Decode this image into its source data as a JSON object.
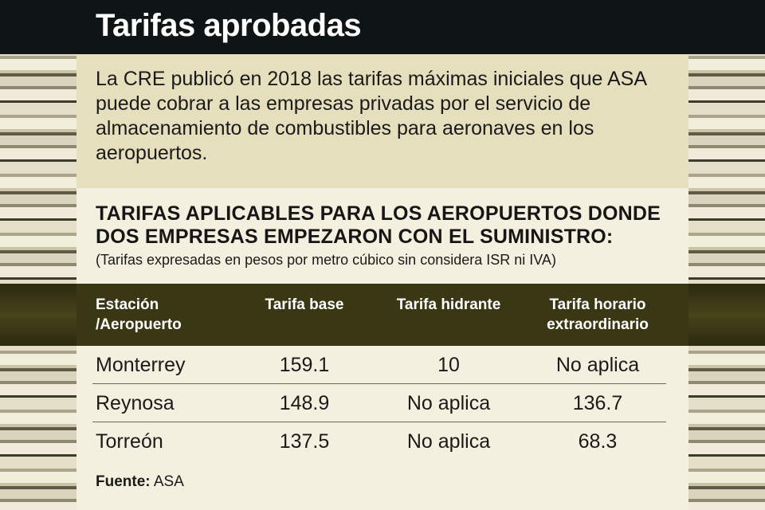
{
  "title": "Tarifas aprobadas",
  "intro": "La CRE publicó en 2018 las tarifas máximas iniciales que ASA puede cobrar a las empresas privadas por el servicio de almacenamiento de combustibles para aeronaves en los aeropuertos.",
  "section": {
    "title_line1": "TARIFAS APLICABLES PARA LOS AEROPUERTOS DONDE",
    "title_line2": "DOS EMPRESAS EMPEZARON CON EL SUMINISTRO:",
    "note": "(Tarifas expresadas en pesos por metro cúbico sin considera ISR ni IVA)"
  },
  "table": {
    "headers": {
      "station_line1": "Estación",
      "station_line2": "/Aeropuerto",
      "base": "Tarifa base",
      "hydrant": "Tarifa hidrante",
      "extra_line1": "Tarifa horario",
      "extra_line2": "extraordinario"
    },
    "rows": [
      {
        "station": "Monterrey",
        "base": "159.1",
        "hydrant": "10",
        "extra": "No aplica"
      },
      {
        "station": "Reynosa",
        "base": "148.9",
        "hydrant": "No aplica",
        "extra": "136.7"
      },
      {
        "station": "Torreón",
        "base": "137.5",
        "hydrant": "No aplica",
        "extra": "68.3"
      }
    ]
  },
  "source": {
    "label": "Fuente:",
    "value": "ASA"
  }
}
